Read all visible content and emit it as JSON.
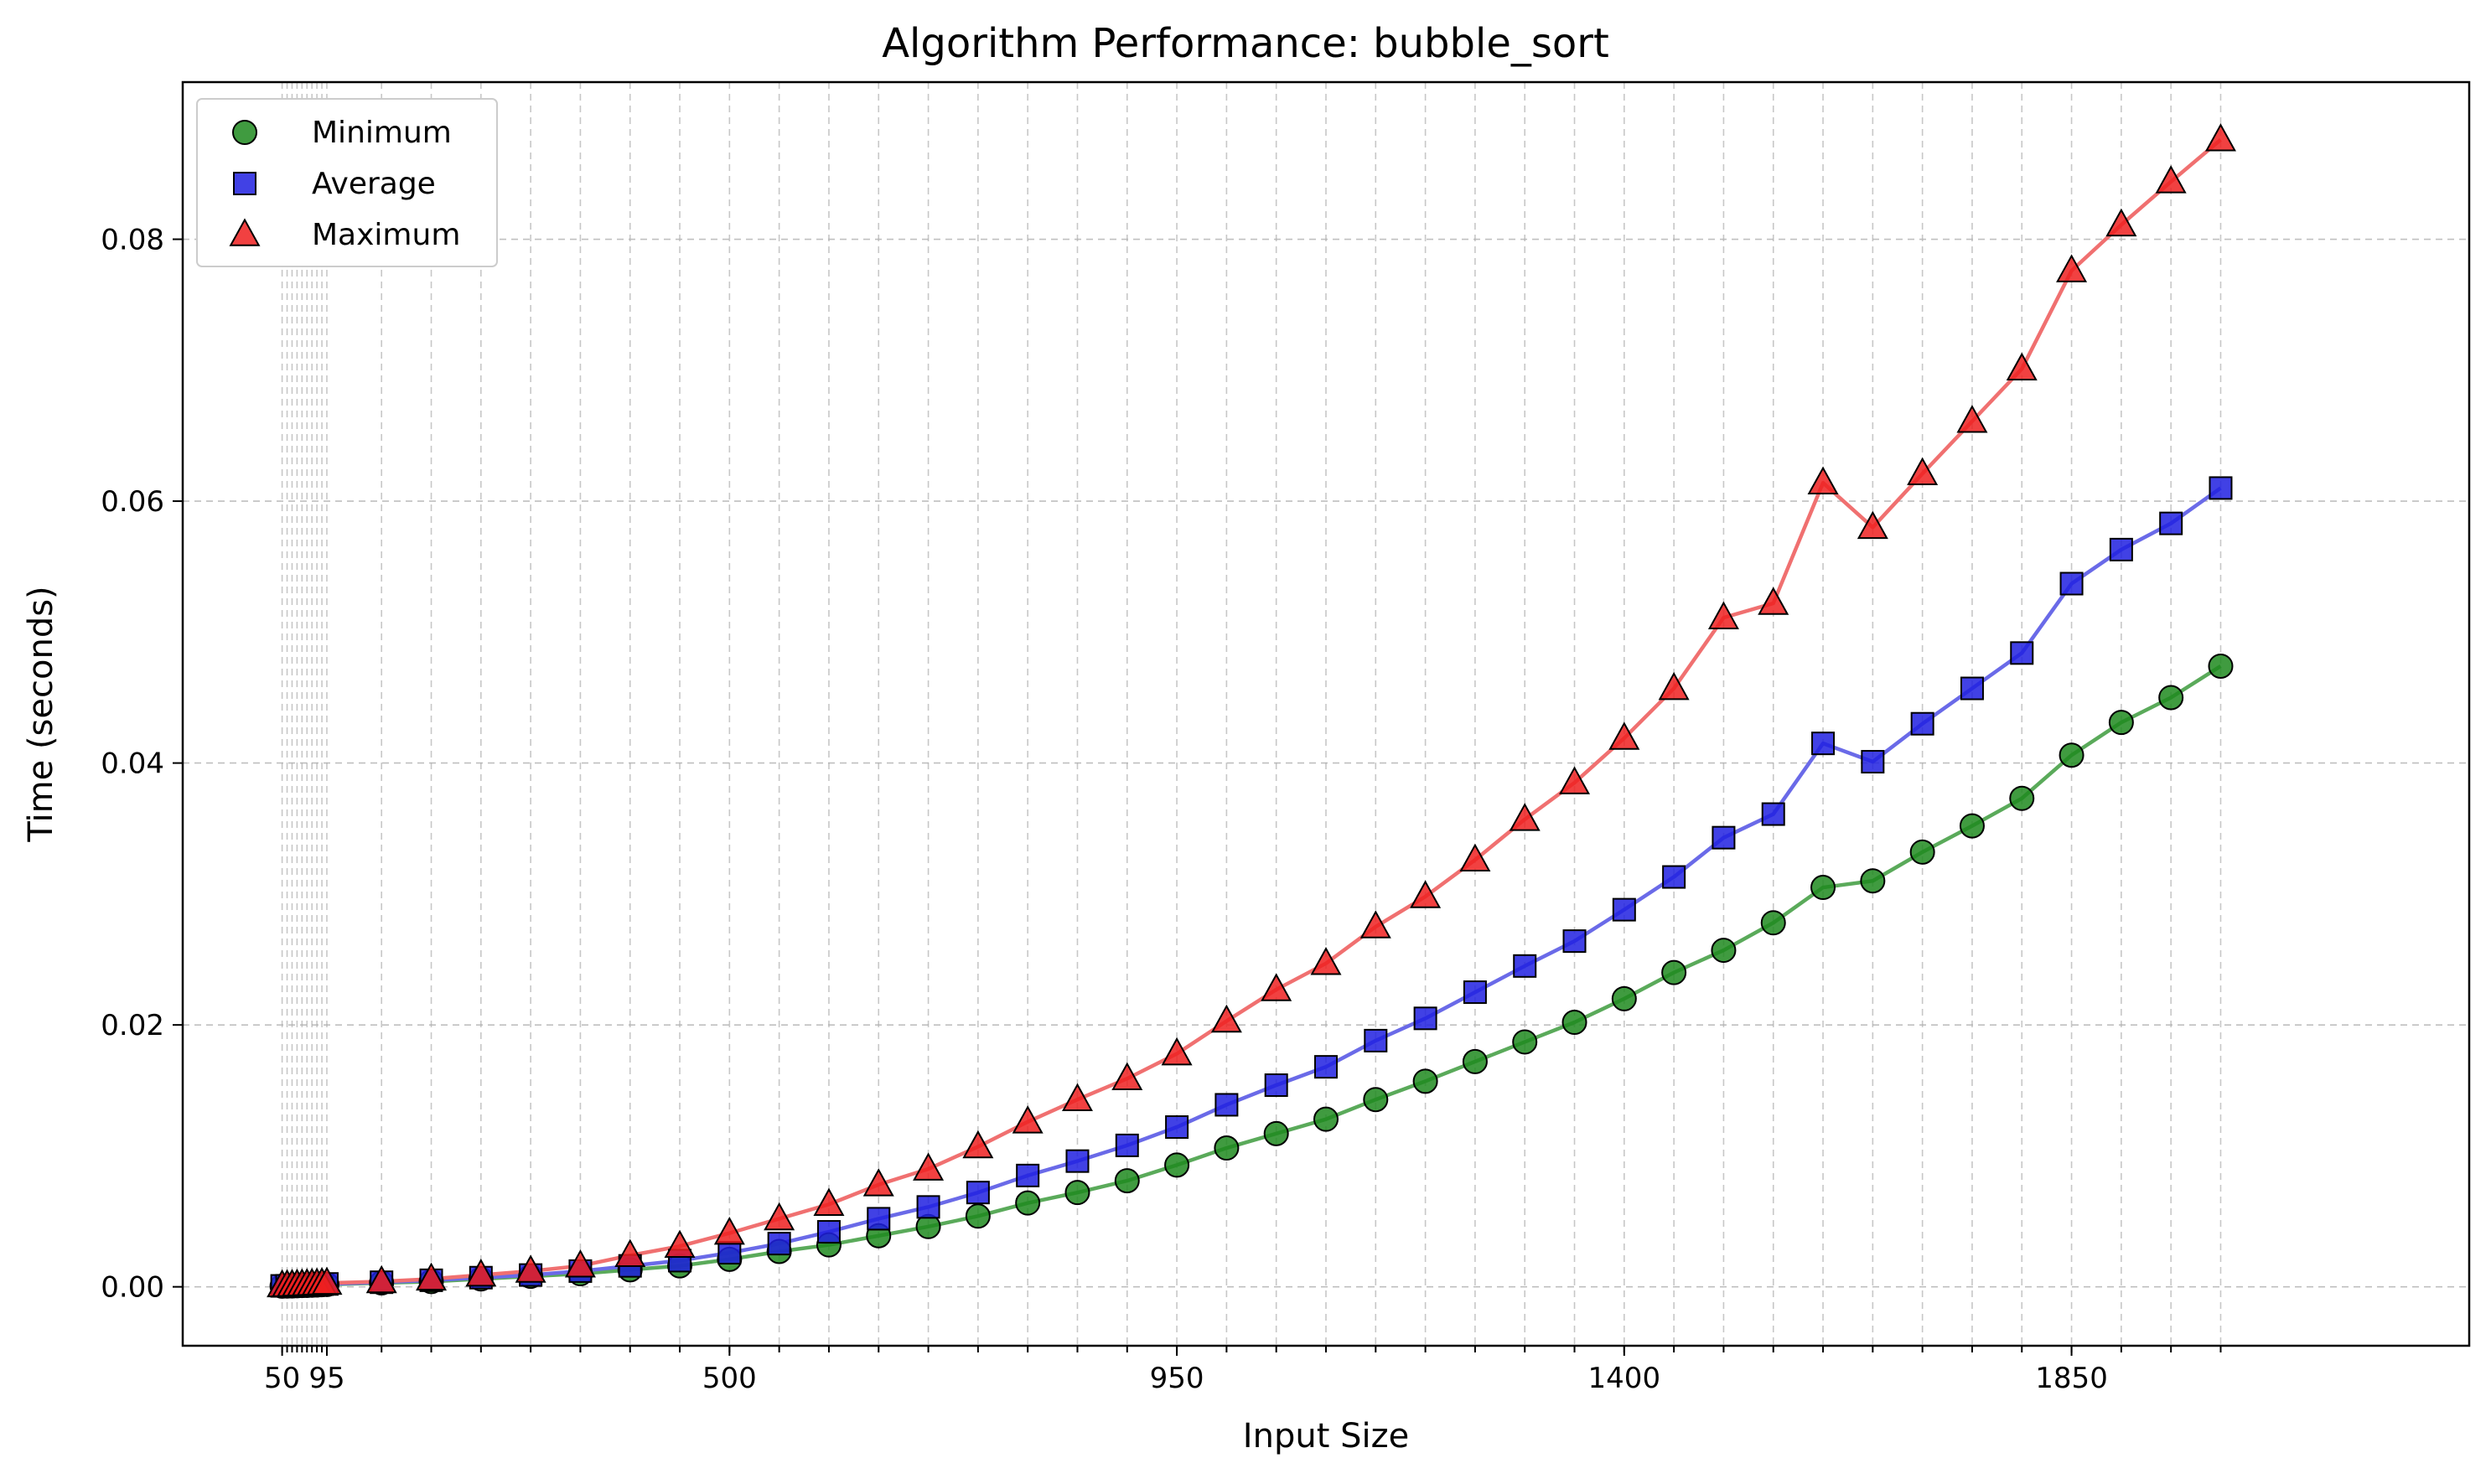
{
  "chart_data": {
    "type": "scatter",
    "title": "Algorithm Performance: bubble_sort",
    "xlabel": "Input Size",
    "ylabel": "Time (seconds)",
    "xlim": [
      -50,
      2250
    ],
    "ylim": [
      -0.0045,
      0.092
    ],
    "x_ticks": [
      50,
      95,
      500,
      950,
      1400,
      1850
    ],
    "x_tick_labels": [
      "50",
      "95",
      "500",
      "950",
      "1400",
      "1850"
    ],
    "y_ticks": [
      0.0,
      0.02,
      0.04,
      0.06,
      0.08
    ],
    "y_tick_labels": [
      "0.00",
      "0.02",
      "0.04",
      "0.06",
      "0.08"
    ],
    "grid": true,
    "legend_position": "top-left",
    "x": [
      50,
      55,
      60,
      65,
      70,
      75,
      80,
      85,
      90,
      95,
      150,
      200,
      250,
      300,
      350,
      400,
      450,
      500,
      550,
      600,
      650,
      700,
      750,
      800,
      850,
      900,
      950,
      1000,
      1050,
      1100,
      1150,
      1200,
      1250,
      1300,
      1350,
      1400,
      1450,
      1500,
      1550,
      1600,
      1650,
      1700,
      1750,
      1800,
      1850,
      1900,
      1950,
      2000
    ],
    "series": [
      {
        "name": "Minimum",
        "marker": "circle",
        "color": "#1f8a1f",
        "line_color": "#5aaa5a",
        "values": [
          5e-05,
          6e-05,
          7e-05,
          8e-05,
          0.0001,
          0.00011,
          0.00012,
          0.00014,
          0.00016,
          0.00018,
          0.0003,
          0.0004,
          0.0006,
          0.0008,
          0.001,
          0.0013,
          0.0016,
          0.0021,
          0.0027,
          0.0032,
          0.0039,
          0.0046,
          0.0054,
          0.0064,
          0.0072,
          0.0081,
          0.0093,
          0.0106,
          0.0117,
          0.0128,
          0.0143,
          0.0157,
          0.0172,
          0.0187,
          0.0202,
          0.022,
          0.024,
          0.0257,
          0.0278,
          0.0305,
          0.031,
          0.0332,
          0.0352,
          0.0373,
          0.0406,
          0.0431,
          0.045,
          0.0474
        ]
      },
      {
        "name": "Average",
        "marker": "square",
        "color": "#2020e0",
        "line_color": "#6a6ae8",
        "values": [
          7e-05,
          8e-05,
          0.0001,
          0.00011,
          0.00013,
          0.00014,
          0.00016,
          0.00018,
          0.0002,
          0.00022,
          0.00035,
          0.0005,
          0.0007,
          0.0009,
          0.0012,
          0.0016,
          0.002,
          0.0026,
          0.0033,
          0.0042,
          0.0052,
          0.0061,
          0.0072,
          0.0085,
          0.0096,
          0.0108,
          0.0122,
          0.0139,
          0.0154,
          0.0168,
          0.0188,
          0.0205,
          0.0225,
          0.0245,
          0.0264,
          0.0288,
          0.0313,
          0.0343,
          0.0361,
          0.0415,
          0.0401,
          0.043,
          0.0457,
          0.0484,
          0.0537,
          0.0563,
          0.0583,
          0.061
        ]
      },
      {
        "name": "Maximum",
        "marker": "triangle",
        "color": "#ee2020",
        "line_color": "#f07070",
        "values": [
          9e-05,
          0.0001,
          0.00012,
          0.00014,
          0.00016,
          0.00018,
          0.0002,
          0.00022,
          0.00025,
          0.00028,
          0.0004,
          0.0006,
          0.0009,
          0.0012,
          0.0016,
          0.0024,
          0.0031,
          0.0041,
          0.0052,
          0.0063,
          0.0078,
          0.009,
          0.0107,
          0.0126,
          0.0143,
          0.0159,
          0.0178,
          0.0203,
          0.0227,
          0.0247,
          0.0275,
          0.0298,
          0.0326,
          0.0357,
          0.0385,
          0.0419,
          0.0457,
          0.0511,
          0.0522,
          0.0614,
          0.058,
          0.0621,
          0.0661,
          0.0701,
          0.0776,
          0.0811,
          0.0844,
          0.0876
        ]
      }
    ]
  }
}
